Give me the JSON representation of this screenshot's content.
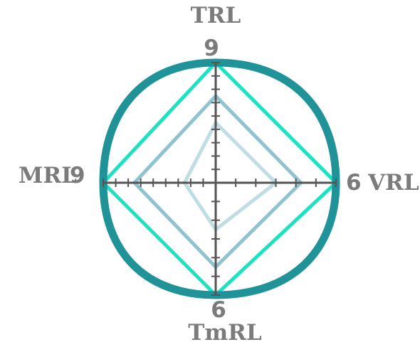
{
  "chart_data": {
    "type": "radar",
    "axes": [
      {
        "label": "TRL",
        "max_label": "9",
        "max": 9
      },
      {
        "label": "VRL",
        "max_label": "6",
        "max": 6
      },
      {
        "label": "TmRL",
        "max_label": "6",
        "max": 6
      },
      {
        "label": "MRL",
        "max_label": "9",
        "max": 9
      }
    ],
    "series": [
      {
        "values": [
          4.5,
          3,
          2.5,
          2.5
        ],
        "color": "#bfdde3",
        "style": "diamond"
      },
      {
        "values": [
          6.5,
          4.25,
          4.5,
          6.5
        ],
        "color": "#8fc3cf",
        "style": "diamond"
      },
      {
        "values": [
          9,
          6,
          6,
          9
        ],
        "color": "#1de2c1",
        "style": "diamond"
      },
      {
        "values": [
          9,
          6,
          6,
          9
        ],
        "color": "#1f9398",
        "style": "rounded"
      }
    ]
  }
}
